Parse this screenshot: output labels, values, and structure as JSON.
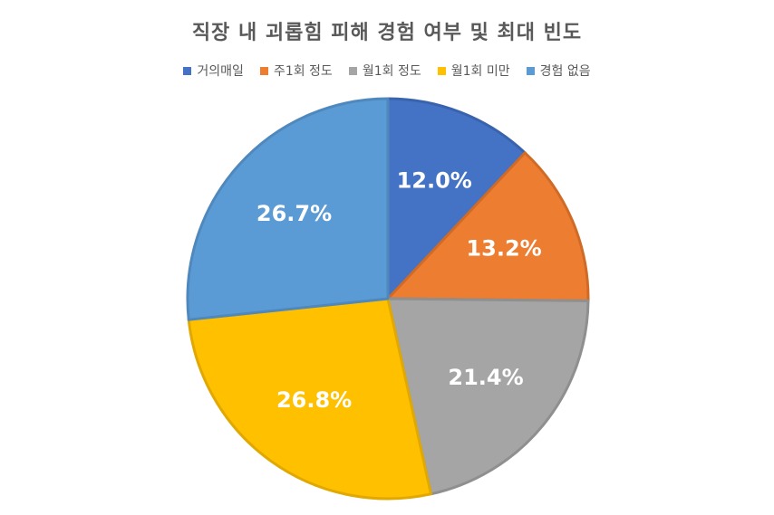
{
  "chart_data": {
    "type": "pie",
    "title": "직장 내 괴롭힘 피해 경험 여부 및 최대 빈도",
    "categories": [
      "거의매일",
      "주1회 정도",
      "월1회 정도",
      "월1회 미만",
      "경험 없음"
    ],
    "values": [
      12.0,
      13.2,
      21.4,
      26.8,
      26.7
    ],
    "labels": [
      "12.0%",
      "13.2%",
      "21.4%",
      "26.8%",
      "26.7%"
    ],
    "colors": [
      "#4472C4",
      "#ED7D31",
      "#A5A5A5",
      "#FFC000",
      "#5B9BD5"
    ],
    "border_colors": [
      "#3A63AD",
      "#D06B27",
      "#8F8F8F",
      "#E0A800",
      "#4F88BD"
    ],
    "legend_position": "top",
    "start_angle": "12 o'clock, clockwise"
  }
}
